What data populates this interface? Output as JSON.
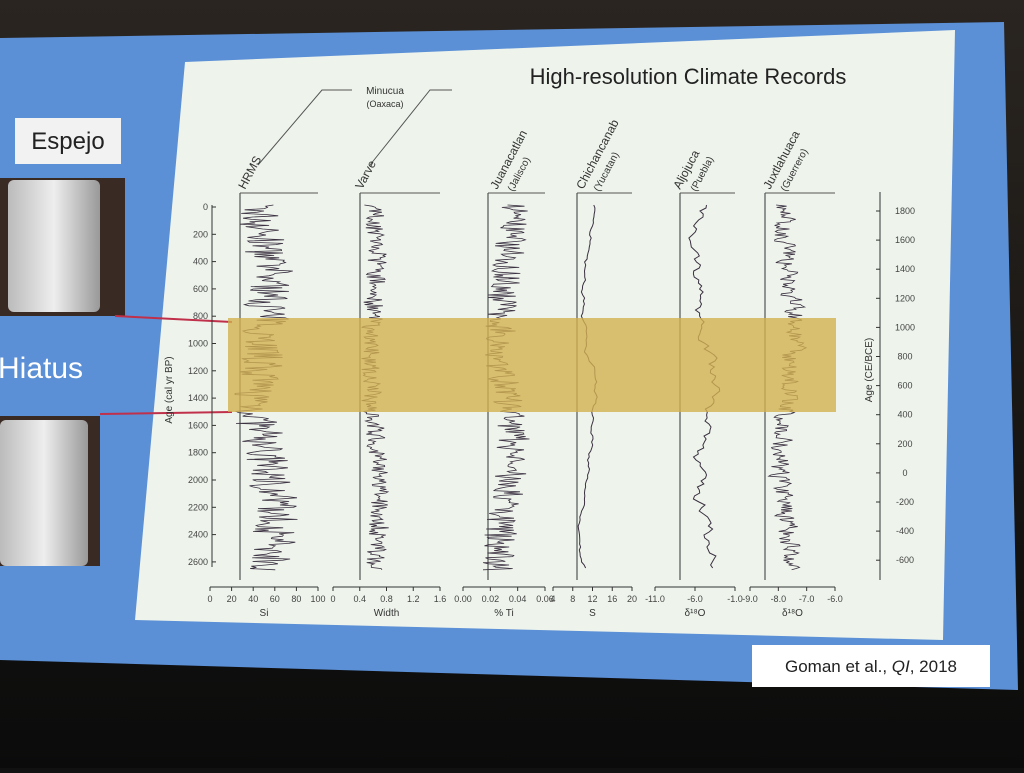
{
  "slide": {
    "title": "High-resolution Climate Records",
    "left_labels": {
      "top": "Espejo",
      "middle": "Hiatus"
    },
    "site_group": {
      "name": "Minucua",
      "region": "(Oaxaca)"
    },
    "panels": [
      {
        "header": "HRMS",
        "axis_label": "Si",
        "ticks": [
          "0",
          "20",
          "40",
          "60",
          "80",
          "100"
        ]
      },
      {
        "header": "Varve",
        "axis_label": "Width",
        "ticks": [
          "0",
          "0.4",
          "0.8",
          "1.2",
          "1.6"
        ]
      },
      {
        "header": "Juanacatlan",
        "region": "(Jalisco)",
        "axis_label": "% Ti",
        "ticks": [
          "0.00",
          "0.02",
          "0.04",
          "0.06"
        ]
      },
      {
        "header": "Chichancanab",
        "region": "(Yucatan)",
        "axis_label": "S",
        "ticks": [
          "4",
          "8",
          "12",
          "16",
          "20"
        ]
      },
      {
        "header": "Aljojuca",
        "region": "(Puebla)",
        "axis_label": "δ¹⁸O",
        "ticks": [
          "-11.0",
          "-6.0",
          "-1.0"
        ]
      },
      {
        "header": "Juxtlahuaca",
        "region": "(Guerrero)",
        "axis_label": "δ¹⁸O",
        "ticks": [
          "-9.0",
          "-8.0",
          "-7.0",
          "-6.0"
        ]
      }
    ],
    "left_axis": {
      "label": "Age (cal yr BP)",
      "ticks": [
        "0",
        "200",
        "400",
        "600",
        "800",
        "1000",
        "1200",
        "1400",
        "1600",
        "1800",
        "2000",
        "2200",
        "2400",
        "2600"
      ]
    },
    "right_axis": {
      "label": "Age (CE/BCE)",
      "ticks": [
        "1800",
        "1600",
        "1400",
        "1200",
        "1000",
        "800",
        "600",
        "400",
        "200",
        "0",
        "-200",
        "-400",
        "-600"
      ]
    },
    "citation": [
      "Goman et al., ",
      "QI",
      ", 2018"
    ]
  }
}
